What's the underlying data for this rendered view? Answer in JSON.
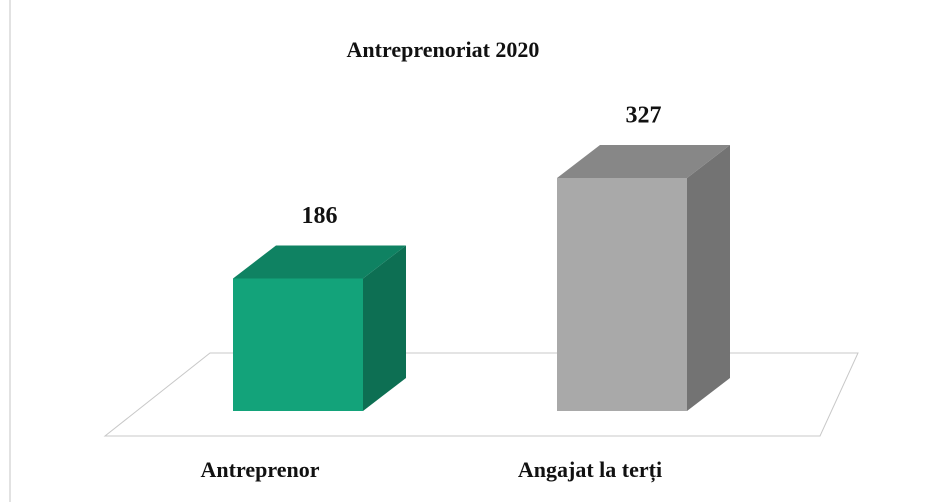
{
  "chart_data": {
    "type": "bar3d",
    "title": "Antreprenoriat 2020",
    "categories": [
      "Antreprenor",
      "Angajat la terți"
    ],
    "values": [
      186,
      327
    ],
    "colors": [
      "#13a37a",
      "#a9a9a9"
    ]
  }
}
